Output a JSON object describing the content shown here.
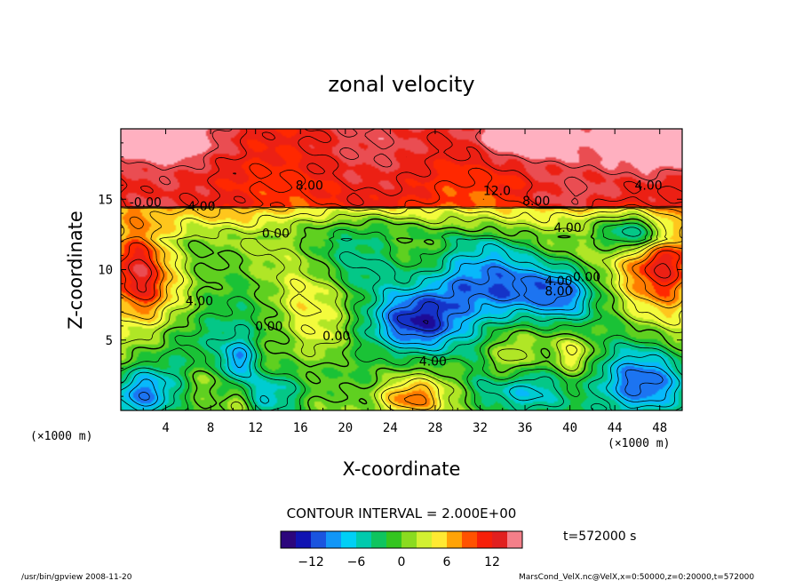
{
  "chart_data": {
    "type": "heatmap",
    "title": "zonal velocity",
    "xlabel": "X-coordinate",
    "ylabel": "Z-coordinate",
    "x_unit": "(×1000 m)",
    "y_unit": "(×1000 m)",
    "xlim": [
      0,
      50
    ],
    "ylim": [
      0,
      20
    ],
    "x_ticks": [
      "4",
      "8",
      "12",
      "16",
      "20",
      "24",
      "28",
      "32",
      "36",
      "40",
      "44",
      "48"
    ],
    "y_ticks": [
      "5",
      "10",
      "15"
    ],
    "contour_interval_label": "CONTOUR INTERVAL = 2.000E+00",
    "contour_interval": 2.0,
    "contour_labels": [
      {
        "text": "8.00",
        "x": 16.8,
        "z": 16.0
      },
      {
        "text": "12.0",
        "x": 33.5,
        "z": 15.6
      },
      {
        "text": "8.00",
        "x": 37.0,
        "z": 14.9
      },
      {
        "text": "-0.00",
        "x": 2.2,
        "z": 14.8
      },
      {
        "text": "4.00",
        "x": 7.2,
        "z": 14.5
      },
      {
        "text": "4.00",
        "x": 47.0,
        "z": 16.0
      },
      {
        "text": "0.00",
        "x": 13.8,
        "z": 12.6
      },
      {
        "text": "4.00",
        "x": 39.8,
        "z": 13.0
      },
      {
        "text": "4.00",
        "x": 7.0,
        "z": 7.8
      },
      {
        "text": "4.00",
        "x": 39.0,
        "z": 9.2
      },
      {
        "text": "8.00",
        "x": 39.0,
        "z": 8.5
      },
      {
        "text": "0.00",
        "x": 41.5,
        "z": 9.5
      },
      {
        "text": "0.00",
        "x": 13.2,
        "z": 6.0
      },
      {
        "text": "0.00",
        "x": 19.2,
        "z": 5.3
      },
      {
        "text": "4.00",
        "x": 27.8,
        "z": 3.5
      }
    ],
    "field_blobs": [
      {
        "x": 26.0,
        "z": 6.2,
        "sx": 3.2,
        "sz": 1.7,
        "a": -13
      },
      {
        "x": 34.0,
        "z": 8.5,
        "sx": 2.2,
        "sz": 1.8,
        "a": -10
      },
      {
        "x": 39.0,
        "z": 8.3,
        "sx": 2.3,
        "sz": 1.5,
        "a": -10
      },
      {
        "x": 30.0,
        "z": 8.8,
        "sx": 2.0,
        "sz": 1.5,
        "a": -7
      },
      {
        "x": 46.5,
        "z": 12.7,
        "sx": 2.5,
        "sz": 1.0,
        "a": -12
      },
      {
        "x": 10.5,
        "z": 3.6,
        "sx": 1.0,
        "sz": 1.0,
        "a": -8
      },
      {
        "x": 2.0,
        "z": 1.2,
        "sx": 2.2,
        "sz": 1.4,
        "a": -11
      },
      {
        "x": 9.0,
        "z": 5.5,
        "sx": 3.0,
        "sz": 1.8,
        "a": -5
      },
      {
        "x": 13.5,
        "z": 1.3,
        "sx": 2.2,
        "sz": 1.2,
        "a": -7
      },
      {
        "x": 46.0,
        "z": 1.8,
        "sx": 3.0,
        "sz": 1.8,
        "a": -11
      },
      {
        "x": 35.0,
        "z": 1.4,
        "sx": 3.0,
        "sz": 1.2,
        "a": -7
      },
      {
        "x": 31.0,
        "z": 11.2,
        "sx": 3.0,
        "sz": 1.4,
        "a": -4
      },
      {
        "x": 21.0,
        "z": 10.5,
        "sx": 3.0,
        "sz": 1.5,
        "a": -4
      },
      {
        "x": 1.5,
        "z": 9.5,
        "sx": 2.2,
        "sz": 2.8,
        "a": 11
      },
      {
        "x": 48.5,
        "z": 11.0,
        "sx": 2.5,
        "sz": 2.5,
        "a": 13
      },
      {
        "x": 48.0,
        "z": 19.2,
        "sx": 3.0,
        "sz": 1.5,
        "a": 11
      },
      {
        "x": 2.0,
        "z": 19.6,
        "sx": 4.0,
        "sz": 1.2,
        "a": 7
      },
      {
        "x": 35.5,
        "z": 19.6,
        "sx": 3.0,
        "sz": 1.2,
        "a": 7
      },
      {
        "x": 16.0,
        "z": 7.2,
        "sx": 2.2,
        "sz": 1.8,
        "a": 4
      },
      {
        "x": 18.0,
        "z": 5.0,
        "sx": 1.5,
        "sz": 1.2,
        "a": 3
      },
      {
        "x": 25.8,
        "z": 0.8,
        "sx": 2.2,
        "sz": 1.0,
        "a": 9
      },
      {
        "x": 34.5,
        "z": 3.2,
        "sx": 1.2,
        "sz": 1.5,
        "a": 5
      },
      {
        "x": 40.5,
        "z": 4.0,
        "sx": 1.0,
        "sz": 1.0,
        "a": 4
      },
      {
        "x": 7.5,
        "z": 2.0,
        "sx": 1.3,
        "sz": 1.0,
        "a": 3
      },
      {
        "x": 10.5,
        "z": 0.5,
        "sx": 1.0,
        "sz": 0.8,
        "a": 5
      },
      {
        "x": 22.0,
        "z": 13.0,
        "sx": 4.0,
        "sz": 0.7,
        "a": -3
      },
      {
        "x": 10.0,
        "z": 14.4,
        "sx": 3.0,
        "sz": 1.0,
        "a": 2
      },
      {
        "x": 40.0,
        "z": 15.2,
        "sx": 3.5,
        "sz": 0.8,
        "a": 2
      }
    ],
    "colorbar": {
      "min": -16,
      "max": 16,
      "tick_labels": [
        "−12",
        "−6",
        "0",
        "6",
        "12"
      ],
      "tick_values": [
        -12,
        -6,
        0,
        6,
        12
      ],
      "stops": [
        "#3a0060",
        "#1010b0",
        "#1e6ef0",
        "#00d0ff",
        "#00c896",
        "#20c020",
        "#9ee020",
        "#ffff40",
        "#ff9a00",
        "#ff2000",
        "#e02020",
        "#ffb0c0"
      ]
    },
    "time_label": "t=572000 s"
  },
  "footer": {
    "left": "/usr/bin/gpview   2008-11-20",
    "right": "MarsCond_VelX.nc@VelX,x=0:50000,z=0:20000,t=572000"
  }
}
